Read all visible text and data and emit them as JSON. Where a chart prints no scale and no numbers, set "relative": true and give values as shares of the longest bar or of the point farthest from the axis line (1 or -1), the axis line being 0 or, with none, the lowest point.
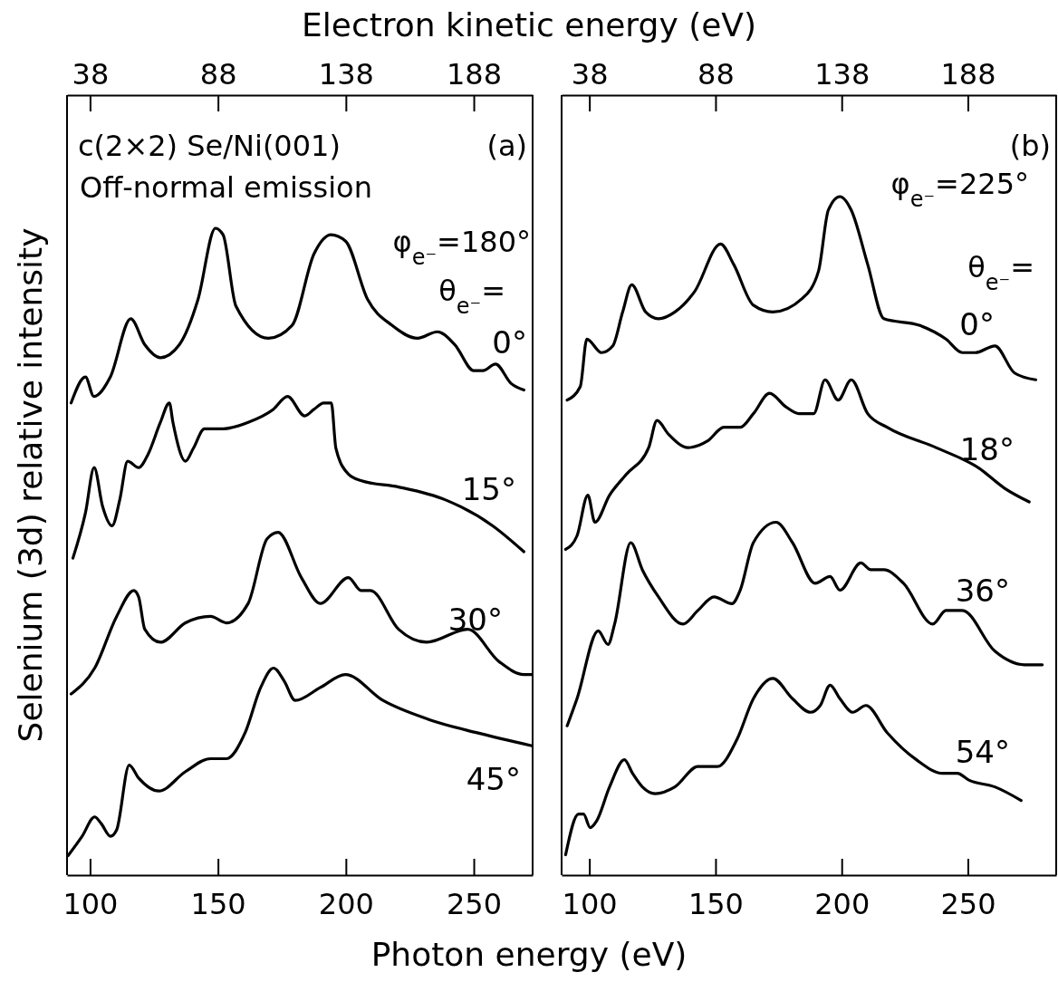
{
  "chart_data": [
    {
      "type": "line",
      "relative": true,
      "xlabel": "Photon energy (eV)",
      "x2label": "Electron kinetic energy (eV)",
      "ylabel": "Selenium (3d) relative intensity",
      "xlim": [
        91,
        273
      ],
      "xticks": [
        100,
        150,
        200,
        250
      ],
      "x2lim": [
        29,
        211
      ],
      "x2ticks": [
        38,
        88,
        138,
        188
      ],
      "annotations": [
        "c(2×2) Se/Ni(001)",
        "Off-normal emission",
        "(a)",
        "φ$_{e⁻}$=180°",
        "θ$_{e⁻}$="
      ],
      "series": [
        {
          "name": "0°",
          "color": "#000000",
          "x": [
            92.6,
            98.2,
            101.5,
            107.9,
            115.9,
            121.4,
            127.5,
            134.9,
            142.2,
            149.0,
            152.0,
            157.0,
            169.7,
            179.0,
            187.5,
            194.2,
            199.9,
            208.5,
            218.0,
            228.0,
            235.8,
            242.6,
            250.0,
            253.6,
            258.5,
            264.6,
            269.6
          ],
          "values": [
            0.73,
            0.77,
            0.74,
            0.77,
            0.86,
            0.82,
            0.8,
            0.82,
            0.89,
            1.0,
            0.99,
            0.88,
            0.83,
            0.85,
            0.96,
            0.99,
            0.98,
            0.89,
            0.85,
            0.83,
            0.84,
            0.82,
            0.78,
            0.78,
            0.79,
            0.76,
            0.75
          ]
        },
        {
          "name": "15°",
          "color": "#000000",
          "x": [
            93.3,
            98.2,
            101.6,
            104.9,
            108.6,
            111.6,
            114.7,
            119.0,
            122.6,
            127.5,
            131.0,
            132.4,
            137.3,
            140.4,
            144.7,
            152.0,
            161.8,
            171.6,
            177.2,
            183.9,
            187.5,
            191.3,
            194.3,
            196.1,
            201.0,
            205.9,
            220.6,
            239.0,
            257.4,
            269.6
          ],
          "values": [
            0.49,
            0.56,
            0.63,
            0.57,
            0.54,
            0.58,
            0.64,
            0.63,
            0.65,
            0.7,
            0.73,
            0.7,
            0.64,
            0.66,
            0.69,
            0.69,
            0.7,
            0.72,
            0.74,
            0.71,
            0.72,
            0.73,
            0.73,
            0.66,
            0.62,
            0.61,
            0.6,
            0.58,
            0.54,
            0.5
          ]
        },
        {
          "name": "30°",
          "color": "#000000",
          "x": [
            92.6,
            101.8,
            110.4,
            117.1,
            119.0,
            121.4,
            127.5,
            137.3,
            147.1,
            153.3,
            161.8,
            169.2,
            173.5,
            182.6,
            190.0,
            201.0,
            205.9,
            209.6,
            220.6,
            231.6,
            247.6,
            259.9,
            269.6,
            272.7
          ],
          "values": [
            0.28,
            0.32,
            0.4,
            0.44,
            0.43,
            0.38,
            0.36,
            0.39,
            0.4,
            0.39,
            0.42,
            0.52,
            0.53,
            0.46,
            0.42,
            0.46,
            0.44,
            0.44,
            0.38,
            0.36,
            0.38,
            0.33,
            0.31,
            0.31
          ]
        },
        {
          "name": "45°",
          "color": "#000000",
          "x": [
            91.4,
            96.9,
            101.8,
            104.3,
            108.0,
            110.4,
            115.3,
            119.0,
            126.9,
            137.3,
            147.1,
            153.3,
            160.6,
            166.7,
            171.7,
            175.9,
            180.2,
            190.0,
            199.8,
            214.5,
            232.9,
            251.3,
            272.7
          ],
          "values": [
            0.03,
            0.06,
            0.09,
            0.08,
            0.06,
            0.07,
            0.17,
            0.15,
            0.13,
            0.16,
            0.18,
            0.18,
            0.22,
            0.29,
            0.32,
            0.3,
            0.27,
            0.29,
            0.31,
            0.27,
            0.24,
            0.22,
            0.2
          ]
        }
      ]
    },
    {
      "type": "line",
      "relative": true,
      "xlim": [
        89,
        285
      ],
      "xticks": [
        100,
        150,
        200,
        250
      ],
      "x2lim": [
        27,
        223
      ],
      "x2ticks": [
        38,
        88,
        138,
        188
      ],
      "annotations": [
        "(b)",
        "φ$_{e⁻}$=225°",
        "θ$_{e⁻}$="
      ],
      "series": [
        {
          "name": "0°",
          "color": "#000000",
          "x": [
            91.2,
            96.4,
            99.0,
            104.8,
            109.3,
            113.2,
            116.8,
            122.3,
            127.4,
            133.9,
            141.7,
            152.0,
            157.2,
            165.0,
            172.7,
            184.4,
            190.8,
            194.7,
            199.3,
            203.8,
            210.3,
            216.7,
            231.0,
            241.3,
            247.8,
            253.0,
            260.7,
            268.5,
            276.9
          ],
          "values": [
            0.7,
            0.72,
            0.79,
            0.77,
            0.78,
            0.83,
            0.87,
            0.83,
            0.82,
            0.83,
            0.86,
            0.93,
            0.9,
            0.84,
            0.83,
            0.85,
            0.89,
            0.98,
            1.0,
            0.98,
            0.9,
            0.82,
            0.81,
            0.79,
            0.77,
            0.77,
            0.78,
            0.74,
            0.73
          ]
        },
        {
          "name": "18°",
          "color": "#000000",
          "x": [
            90.6,
            95.1,
            99.4,
            102.2,
            108.0,
            114.5,
            123.5,
            126.8,
            131.3,
            139.1,
            146.9,
            153.3,
            159.8,
            165.0,
            171.4,
            177.9,
            183.1,
            188.9,
            193.4,
            198.6,
            203.8,
            210.3,
            218.0,
            237.4,
            254.3,
            264.6,
            274.3
          ],
          "values": [
            0.48,
            0.5,
            0.56,
            0.52,
            0.56,
            0.59,
            0.63,
            0.67,
            0.65,
            0.63,
            0.64,
            0.66,
            0.66,
            0.68,
            0.71,
            0.69,
            0.68,
            0.68,
            0.73,
            0.7,
            0.73,
            0.68,
            0.66,
            0.63,
            0.6,
            0.57,
            0.55
          ]
        },
        {
          "name": "36°",
          "color": "#000000",
          "x": [
            91.2,
            95.1,
            103.5,
            107.4,
            110.0,
            116.4,
            121.0,
            127.4,
            137.1,
            143.0,
            149.4,
            156.5,
            159.8,
            165.0,
            174.0,
            180.5,
            189.5,
            195.4,
            199.3,
            207.6,
            211.5,
            216.7,
            224.5,
            236.1,
            241.3,
            247.8,
            260.7,
            272.4,
            279.5
          ],
          "values": [
            0.22,
            0.26,
            0.36,
            0.34,
            0.37,
            0.49,
            0.45,
            0.41,
            0.37,
            0.39,
            0.41,
            0.4,
            0.42,
            0.49,
            0.52,
            0.49,
            0.43,
            0.44,
            0.42,
            0.46,
            0.45,
            0.45,
            0.43,
            0.37,
            0.39,
            0.39,
            0.33,
            0.31,
            0.31
          ]
        },
        {
          "name": "54°",
          "color": "#000000",
          "x": [
            90.6,
            95.7,
            97.7,
            100.3,
            102.9,
            108.0,
            113.9,
            117.1,
            121.0,
            126.1,
            133.9,
            143.0,
            150.7,
            158.5,
            165.0,
            172.7,
            180.5,
            187.6,
            191.5,
            195.4,
            199.3,
            204.4,
            209.6,
            218.0,
            229.6,
            240.0,
            245.8,
            250.4,
            260.7,
            271.1
          ],
          "values": [
            0.03,
            0.09,
            0.09,
            0.07,
            0.08,
            0.13,
            0.17,
            0.15,
            0.13,
            0.12,
            0.13,
            0.16,
            0.16,
            0.2,
            0.26,
            0.29,
            0.26,
            0.24,
            0.25,
            0.28,
            0.26,
            0.24,
            0.25,
            0.21,
            0.17,
            0.15,
            0.15,
            0.14,
            0.13,
            0.11
          ]
        }
      ]
    }
  ]
}
